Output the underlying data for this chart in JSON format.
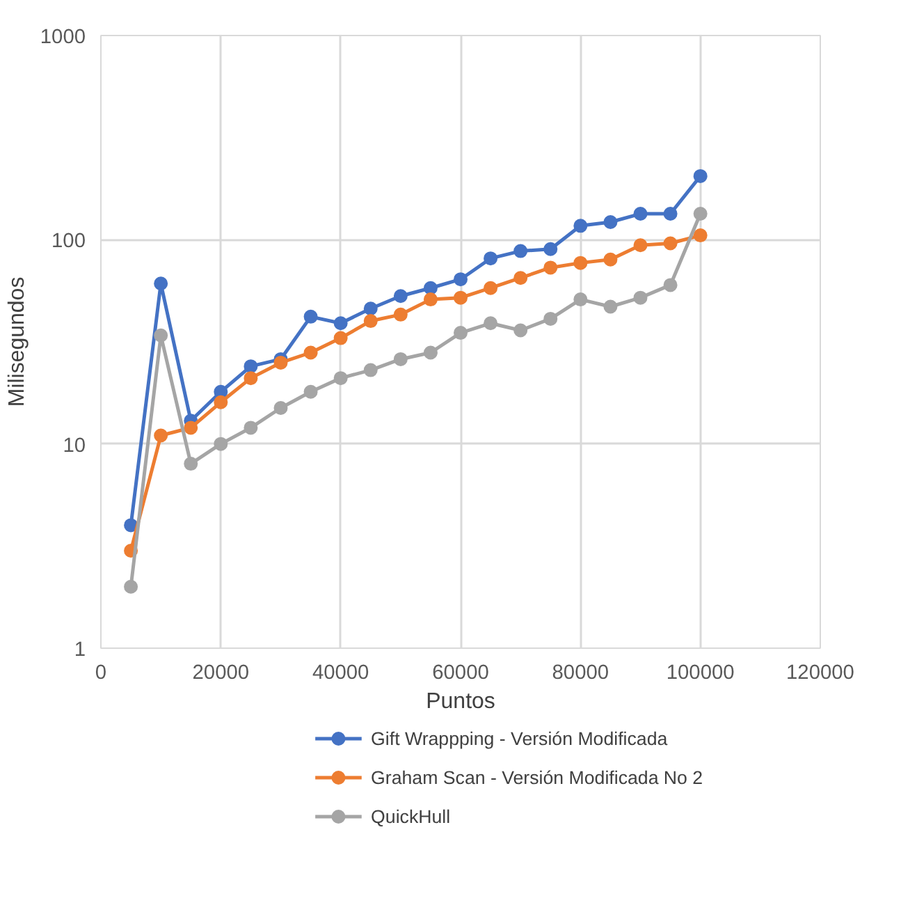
{
  "chart_data": {
    "type": "line",
    "xlabel": "Puntos",
    "ylabel": "Milisegundos",
    "x": [
      5000,
      10000,
      15000,
      20000,
      25000,
      30000,
      35000,
      40000,
      45000,
      50000,
      55000,
      60000,
      65000,
      70000,
      75000,
      80000,
      85000,
      90000,
      95000,
      100000
    ],
    "series": [
      {
        "name": "Gift Wrappping - Versión Modificada",
        "color": "#4472c4",
        "values": [
          4,
          61,
          13,
          18,
          24,
          26,
          42,
          39,
          46,
          53,
          58,
          64,
          81,
          88,
          90,
          117,
          122,
          134,
          134,
          205
        ]
      },
      {
        "name": "Graham Scan - Versión Modificada No 2",
        "color": "#ed7d31",
        "values": [
          3,
          11,
          12,
          16,
          21,
          25,
          28,
          33,
          40,
          43,
          51,
          52,
          58,
          65,
          73,
          77,
          80,
          94,
          96,
          105
        ]
      },
      {
        "name": "QuickHull",
        "color": "#a5a5a5",
        "values": [
          2,
          34,
          8,
          10,
          12,
          15,
          18,
          21,
          23,
          26,
          28,
          35,
          39,
          36,
          41,
          51,
          47,
          52,
          60,
          134
        ]
      }
    ],
    "xlim": [
      0,
      120000
    ],
    "xticks": [
      0,
      20000,
      40000,
      60000,
      80000,
      100000,
      120000
    ],
    "ylim": [
      1,
      1000
    ],
    "yticks": [
      1,
      10,
      100,
      1000
    ],
    "log": "y",
    "grid": true,
    "legend": "bottom",
    "marker": "circle",
    "line_style": "solid"
  }
}
